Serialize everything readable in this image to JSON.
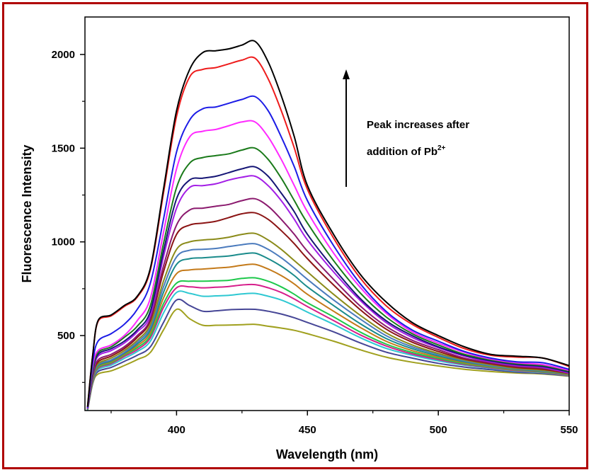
{
  "chart_data": {
    "type": "line",
    "xlabel": "Wavelength (nm)",
    "ylabel": "Fluorescence Intensity",
    "xlim": [
      365,
      550
    ],
    "ylim": [
      100,
      2200
    ],
    "x_ticks": [
      400,
      450,
      500,
      550
    ],
    "y_ticks": [
      500,
      1000,
      1500,
      2000
    ],
    "annotation": {
      "line1": "Peak increases after",
      "line2_prefix": "addition of Pb",
      "line2_sup": "2+"
    },
    "x": [
      366,
      368,
      370,
      375,
      380,
      385,
      390,
      395,
      400,
      405,
      410,
      415,
      420,
      425,
      430,
      435,
      440,
      445,
      450,
      460,
      470,
      480,
      490,
      500,
      510,
      520,
      530,
      540,
      550
    ],
    "series": [
      {
        "color": "#000000",
        "values": [
          120,
          400,
          580,
          610,
          660,
          710,
          860,
          1280,
          1700,
          1920,
          2010,
          2020,
          2030,
          2050,
          2070,
          1960,
          1780,
          1560,
          1300,
          1040,
          830,
          680,
          570,
          500,
          440,
          400,
          390,
          380,
          340
        ]
      },
      {
        "color": "#ee1c1c",
        "values": [
          120,
          400,
          575,
          605,
          655,
          705,
          850,
          1260,
          1670,
          1880,
          1920,
          1930,
          1950,
          1970,
          1980,
          1870,
          1700,
          1500,
          1280,
          1020,
          810,
          660,
          560,
          490,
          430,
          395,
          385,
          380,
          335
        ]
      },
      {
        "color": "#1c1ce6",
        "values": [
          115,
          360,
          470,
          510,
          560,
          640,
          780,
          1120,
          1480,
          1650,
          1710,
          1720,
          1740,
          1760,
          1775,
          1700,
          1560,
          1400,
          1220,
          980,
          780,
          630,
          530,
          470,
          415,
          380,
          360,
          355,
          320
        ]
      },
      {
        "color": "#ff29ff",
        "values": [
          115,
          340,
          420,
          450,
          500,
          580,
          700,
          1050,
          1390,
          1560,
          1590,
          1600,
          1620,
          1640,
          1640,
          1560,
          1440,
          1300,
          1160,
          940,
          760,
          620,
          520,
          460,
          410,
          375,
          355,
          345,
          315
        ]
      },
      {
        "color": "#1a7a1a",
        "values": [
          115,
          320,
          410,
          440,
          490,
          550,
          660,
          990,
          1290,
          1420,
          1450,
          1460,
          1470,
          1490,
          1500,
          1440,
          1340,
          1220,
          1100,
          900,
          730,
          600,
          510,
          450,
          400,
          370,
          350,
          340,
          310
        ]
      },
      {
        "color": "#151575",
        "values": [
          115,
          310,
          400,
          430,
          470,
          530,
          630,
          950,
          1230,
          1330,
          1340,
          1350,
          1370,
          1390,
          1400,
          1350,
          1260,
          1160,
          1040,
          860,
          700,
          580,
          500,
          440,
          395,
          365,
          345,
          335,
          305
        ]
      },
      {
        "color": "#a31ee6",
        "values": [
          110,
          300,
          390,
          420,
          460,
          520,
          610,
          920,
          1180,
          1290,
          1300,
          1310,
          1330,
          1345,
          1350,
          1300,
          1220,
          1120,
          1010,
          840,
          690,
          570,
          490,
          435,
          390,
          360,
          340,
          330,
          300
        ]
      },
      {
        "color": "#8b1a6e",
        "values": [
          110,
          290,
          370,
          400,
          440,
          500,
          590,
          870,
          1090,
          1170,
          1180,
          1190,
          1200,
          1220,
          1230,
          1190,
          1120,
          1040,
          950,
          800,
          660,
          550,
          475,
          425,
          380,
          355,
          335,
          325,
          300
        ]
      },
      {
        "color": "#8b1414",
        "values": [
          110,
          285,
          360,
          390,
          430,
          490,
          580,
          840,
          1040,
          1090,
          1100,
          1110,
          1130,
          1150,
          1155,
          1120,
          1060,
          990,
          910,
          770,
          640,
          535,
          465,
          415,
          375,
          350,
          330,
          320,
          298
        ]
      },
      {
        "color": "#8b8b1a",
        "values": [
          108,
          280,
          350,
          380,
          420,
          475,
          560,
          790,
          960,
          1000,
          1010,
          1015,
          1025,
          1040,
          1045,
          1010,
          960,
          900,
          840,
          720,
          610,
          515,
          450,
          405,
          370,
          345,
          325,
          315,
          295
        ]
      },
      {
        "color": "#4b7bbd",
        "values": [
          108,
          275,
          345,
          370,
          410,
          465,
          545,
          760,
          920,
          955,
          960,
          965,
          975,
          985,
          990,
          960,
          915,
          860,
          800,
          690,
          590,
          500,
          440,
          400,
          365,
          340,
          322,
          312,
          294
        ]
      },
      {
        "color": "#1a8b8b",
        "values": [
          105,
          270,
          340,
          365,
          405,
          455,
          530,
          730,
          880,
          910,
          915,
          920,
          925,
          935,
          940,
          910,
          870,
          820,
          760,
          660,
          565,
          485,
          430,
          392,
          360,
          338,
          320,
          310,
          292
        ]
      },
      {
        "color": "#c47a1a",
        "values": [
          105,
          265,
          335,
          360,
          400,
          445,
          515,
          700,
          830,
          850,
          855,
          860,
          865,
          875,
          880,
          855,
          820,
          775,
          720,
          630,
          545,
          470,
          420,
          385,
          355,
          335,
          318,
          308,
          290
        ]
      },
      {
        "color": "#1ec84b",
        "values": [
          105,
          262,
          330,
          355,
          395,
          435,
          500,
          670,
          780,
          790,
          790,
          792,
          795,
          805,
          808,
          790,
          760,
          720,
          675,
          600,
          520,
          455,
          410,
          378,
          350,
          332,
          316,
          306,
          290
        ]
      },
      {
        "color": "#d61e8b",
        "values": [
          105,
          258,
          325,
          350,
          388,
          425,
          488,
          650,
          755,
          760,
          755,
          758,
          762,
          770,
          772,
          755,
          730,
          695,
          655,
          580,
          505,
          445,
          402,
          372,
          346,
          328,
          313,
          304,
          288
        ]
      },
      {
        "color": "#2ec8d2",
        "values": [
          102,
          255,
          318,
          342,
          378,
          415,
          470,
          620,
          730,
          725,
          710,
          712,
          715,
          722,
          725,
          710,
          690,
          660,
          625,
          560,
          490,
          432,
          395,
          365,
          342,
          325,
          310,
          302,
          287
        ]
      },
      {
        "color": "#464696",
        "values": [
          102,
          250,
          308,
          330,
          362,
          395,
          440,
          570,
          690,
          660,
          630,
          632,
          638,
          640,
          640,
          630,
          615,
          595,
          570,
          520,
          462,
          412,
          380,
          352,
          332,
          318,
          305,
          298,
          285
        ]
      },
      {
        "color": "#a0a01e",
        "values": [
          100,
          245,
          295,
          312,
          340,
          372,
          410,
          530,
          640,
          590,
          555,
          555,
          556,
          558,
          560,
          550,
          540,
          528,
          510,
          470,
          425,
          385,
          358,
          338,
          320,
          308,
          300,
          295,
          283
        ]
      }
    ]
  }
}
